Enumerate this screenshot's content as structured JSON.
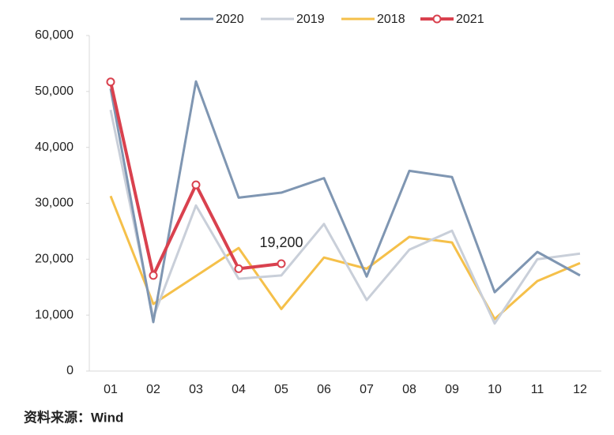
{
  "chart_data": {
    "type": "line",
    "categories": [
      "01",
      "02",
      "03",
      "04",
      "05",
      "06",
      "07",
      "08",
      "09",
      "10",
      "11",
      "12"
    ],
    "series": [
      {
        "name": "2020",
        "color": "#7f96b2",
        "values": [
          50500,
          8750,
          51800,
          31000,
          31900,
          34500,
          16900,
          35800,
          34700,
          14100,
          21300,
          17100
        ]
      },
      {
        "name": "2019",
        "color": "#c9cfd9",
        "values": [
          46700,
          9600,
          29600,
          16500,
          17100,
          26300,
          12700,
          21700,
          25100,
          8500,
          20000,
          21000
        ]
      },
      {
        "name": "2018",
        "color": "#f5c04a",
        "values": [
          31300,
          12000,
          17000,
          22000,
          11100,
          20300,
          18300,
          24000,
          23000,
          9300,
          16100,
          19300
        ]
      },
      {
        "name": "2021",
        "color": "#d9414e",
        "markers": true,
        "values": [
          51700,
          17100,
          33300,
          18300,
          19200,
          null,
          null,
          null,
          null,
          null,
          null,
          null
        ],
        "value_labels": [
          null,
          null,
          null,
          null,
          "19,200",
          null,
          null,
          null,
          null,
          null,
          null,
          null
        ]
      }
    ],
    "ylim": [
      0,
      60000
    ],
    "yticks": [
      0,
      {
        "value": 10000,
        "label": "10,000"
      },
      {
        "value": 20000,
        "label": "20,000"
      },
      {
        "value": 30000,
        "label": "30,000"
      },
      {
        "value": 40000,
        "label": "40,000"
      },
      {
        "value": 50000,
        "label": "50,000"
      },
      {
        "value": 60000,
        "label": "60,000"
      }
    ],
    "grid": false,
    "legend": "top",
    "source": "资料来源：Wind"
  }
}
